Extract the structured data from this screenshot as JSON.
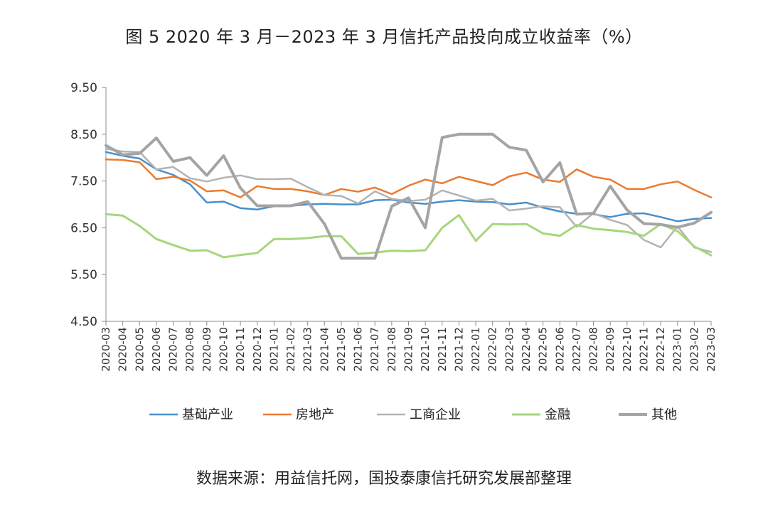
{
  "chart_data": {
    "type": "line",
    "title": "图 5   2020 年 3 月－2023 年 3 月信托产品投向成立收益率（%）",
    "source": "数据来源：用益信托网，国投泰康信托研究发展部整理",
    "ylim": [
      4.5,
      9.5
    ],
    "yticks": [
      "9.50",
      "8.50",
      "7.50",
      "6.50",
      "5.50",
      "4.50"
    ],
    "ytick_values": [
      9.5,
      8.5,
      7.5,
      6.5,
      5.5,
      4.5
    ],
    "grid": false,
    "legend_position": "bottom",
    "categories": [
      "2020-03",
      "2020-04",
      "2020-05",
      "2020-06",
      "2020-07",
      "2020-08",
      "2020-09",
      "2020-10",
      "2020-11",
      "2020-12",
      "2021-01",
      "2021-02",
      "2021-03",
      "2021-04",
      "2021-05",
      "2021-06",
      "2021-07",
      "2021-08",
      "2021-09",
      "2021-10",
      "2021-11",
      "2021-12",
      "2022-01",
      "2022-02",
      "2022-03",
      "2022-04",
      "2022-05",
      "2022-06",
      "2022-07",
      "2022-08",
      "2022-09",
      "2022-10",
      "2022-11",
      "2022-12",
      "2023-01",
      "2023-02",
      "2023-03"
    ],
    "series": [
      {
        "name": "基础产业",
        "color": "#4a8fcb",
        "width": 2.5,
        "values": [
          8.12,
          8.04,
          7.98,
          7.75,
          7.63,
          7.43,
          7.04,
          7.06,
          6.92,
          6.89,
          6.96,
          6.97,
          7.0,
          7.01,
          7.0,
          7.0,
          7.09,
          7.1,
          7.04,
          7.01,
          7.06,
          7.09,
          7.06,
          7.05,
          7.0,
          7.04,
          6.93,
          6.85,
          6.8,
          6.79,
          6.73,
          6.8,
          6.81,
          6.73,
          6.64,
          6.69,
          6.71
        ]
      },
      {
        "name": "房地产",
        "color": "#ea7b32",
        "width": 2.5,
        "values": [
          7.96,
          7.95,
          7.9,
          7.54,
          7.59,
          7.51,
          7.28,
          7.3,
          7.15,
          7.39,
          7.33,
          7.33,
          7.28,
          7.2,
          7.33,
          7.27,
          7.36,
          7.22,
          7.4,
          7.53,
          7.45,
          7.59,
          7.5,
          7.41,
          7.6,
          7.68,
          7.53,
          7.48,
          7.75,
          7.59,
          7.53,
          7.33,
          7.33,
          7.43,
          7.49,
          7.31,
          7.15
        ]
      },
      {
        "name": "工商企业",
        "color": "#b3b3b3",
        "width": 2.5,
        "values": [
          8.19,
          8.13,
          8.12,
          7.75,
          7.8,
          7.56,
          7.49,
          7.57,
          7.62,
          7.54,
          7.54,
          7.55,
          7.37,
          7.2,
          7.18,
          7.02,
          7.28,
          7.12,
          7.07,
          7.1,
          7.3,
          7.19,
          7.08,
          7.12,
          6.87,
          6.91,
          6.96,
          6.94,
          6.52,
          6.81,
          6.67,
          6.56,
          6.24,
          6.08,
          6.53,
          6.08,
          5.98
        ]
      },
      {
        "name": "金融",
        "color": "#a6d67e",
        "width": 3,
        "values": [
          6.79,
          6.76,
          6.54,
          6.26,
          6.13,
          6.01,
          6.02,
          5.87,
          5.92,
          5.96,
          6.26,
          6.26,
          6.28,
          6.32,
          6.32,
          5.94,
          5.97,
          6.01,
          6.0,
          6.02,
          6.5,
          6.77,
          6.22,
          6.58,
          6.57,
          6.58,
          6.38,
          6.33,
          6.56,
          6.48,
          6.45,
          6.41,
          6.33,
          6.58,
          6.43,
          6.1,
          5.91
        ]
      },
      {
        "name": "其他",
        "color": "#a4a4a4",
        "width": 4,
        "values": [
          8.26,
          8.06,
          8.09,
          8.42,
          7.92,
          8.0,
          7.62,
          8.04,
          7.35,
          6.97,
          6.97,
          6.97,
          7.06,
          6.58,
          5.85,
          5.85,
          5.85,
          6.96,
          7.14,
          6.5,
          8.43,
          8.5,
          8.5,
          8.5,
          8.22,
          8.16,
          7.48,
          7.89,
          6.79,
          6.81,
          7.39,
          6.88,
          6.59,
          6.57,
          6.51,
          6.6,
          6.83
        ]
      }
    ]
  }
}
